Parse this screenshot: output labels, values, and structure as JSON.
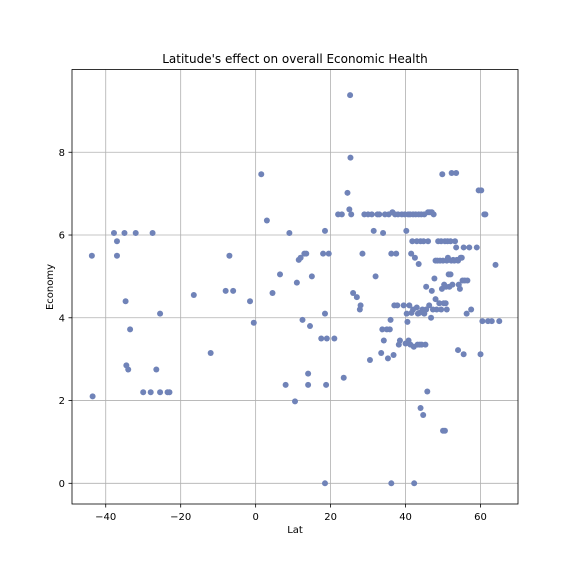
{
  "chart_data": {
    "type": "scatter",
    "title": "Latitude's effect on overall Economic Health",
    "xlabel": "Lat",
    "ylabel": "Economy",
    "xlim": [
      -49,
      70
    ],
    "ylim": [
      -0.5,
      10
    ],
    "xticks": [
      -40,
      -20,
      0,
      20,
      40,
      60
    ],
    "yticks": [
      0,
      2,
      4,
      6,
      8
    ],
    "grid": true,
    "point_color": "#7083b8",
    "points": [
      [
        -43.7,
        5.5
      ],
      [
        -43.5,
        2.1
      ],
      [
        -37.8,
        6.05
      ],
      [
        -37,
        5.85
      ],
      [
        -37,
        5.5
      ],
      [
        -35,
        6.05
      ],
      [
        -34.7,
        4.4
      ],
      [
        -34.5,
        2.85
      ],
      [
        -34,
        2.75
      ],
      [
        -33.5,
        3.72
      ],
      [
        -32,
        6.05
      ],
      [
        -30,
        2.2
      ],
      [
        -28,
        2.2
      ],
      [
        -27.5,
        6.05
      ],
      [
        -26.5,
        2.75
      ],
      [
        -25.5,
        4.1
      ],
      [
        -25.5,
        2.2
      ],
      [
        -23.5,
        2.2
      ],
      [
        -23,
        2.2
      ],
      [
        -16.5,
        4.55
      ],
      [
        -12,
        3.15
      ],
      [
        -8,
        4.65
      ],
      [
        -7,
        5.5
      ],
      [
        -6,
        4.65
      ],
      [
        -1.5,
        4.4
      ],
      [
        -0.5,
        3.88
      ],
      [
        1.5,
        7.47
      ],
      [
        3,
        6.35
      ],
      [
        4.5,
        4.6
      ],
      [
        6.5,
        5.05
      ],
      [
        8,
        2.38
      ],
      [
        9,
        6.05
      ],
      [
        10.5,
        1.98
      ],
      [
        11,
        4.85
      ],
      [
        11.5,
        5.4
      ],
      [
        12,
        5.45
      ],
      [
        12.5,
        3.95
      ],
      [
        13,
        5.55
      ],
      [
        13.5,
        5.55
      ],
      [
        14,
        2.65
      ],
      [
        14,
        2.38
      ],
      [
        14.5,
        3.8
      ],
      [
        15,
        5.0
      ],
      [
        17.5,
        3.5
      ],
      [
        18,
        5.55
      ],
      [
        18.5,
        6.1
      ],
      [
        18.5,
        4.1
      ],
      [
        18.8,
        2.38
      ],
      [
        19.5,
        5.55
      ],
      [
        19,
        3.5
      ],
      [
        21,
        3.5
      ],
      [
        18.5,
        0.0
      ],
      [
        22,
        6.5
      ],
      [
        23,
        6.5
      ],
      [
        23.5,
        2.55
      ],
      [
        24.5,
        7.02
      ],
      [
        25,
        6.62
      ],
      [
        25.2,
        9.38
      ],
      [
        25.3,
        7.87
      ],
      [
        25.5,
        6.5
      ],
      [
        26,
        4.6
      ],
      [
        27,
        4.5
      ],
      [
        27.8,
        4.2
      ],
      [
        28,
        4.3
      ],
      [
        28.5,
        5.55
      ],
      [
        29,
        6.5
      ],
      [
        30,
        6.5
      ],
      [
        30.5,
        2.98
      ],
      [
        31,
        6.5
      ],
      [
        31.5,
        6.1
      ],
      [
        32,
        5.0
      ],
      [
        32.5,
        6.5
      ],
      [
        33,
        6.5
      ],
      [
        33.5,
        3.15
      ],
      [
        33.8,
        3.72
      ],
      [
        34,
        6.05
      ],
      [
        34.2,
        3.45
      ],
      [
        34.5,
        6.5
      ],
      [
        35,
        3.72
      ],
      [
        35.3,
        3.02
      ],
      [
        35.5,
        6.5
      ],
      [
        35.8,
        3.72
      ],
      [
        36,
        3.95
      ],
      [
        36.2,
        5.55
      ],
      [
        36.2,
        0.0
      ],
      [
        36.5,
        6.55
      ],
      [
        36.8,
        3.1
      ],
      [
        37,
        4.3
      ],
      [
        37.2,
        6.5
      ],
      [
        37.5,
        5.55
      ],
      [
        37.8,
        4.3
      ],
      [
        38,
        6.5
      ],
      [
        38.2,
        3.35
      ],
      [
        38.5,
        3.45
      ],
      [
        39,
        6.5
      ],
      [
        39.5,
        4.3
      ],
      [
        39.8,
        6.5
      ],
      [
        40,
        3.38
      ],
      [
        40.2,
        6.1
      ],
      [
        40.3,
        4.1
      ],
      [
        40.5,
        3.9
      ],
      [
        40.7,
        6.5
      ],
      [
        40.8,
        3.45
      ],
      [
        41,
        4.3
      ],
      [
        41.2,
        6.5
      ],
      [
        41.3,
        3.35
      ],
      [
        41.5,
        5.55
      ],
      [
        41.6,
        4.12
      ],
      [
        41.8,
        5.85
      ],
      [
        42,
        6.5
      ],
      [
        42,
        4.2
      ],
      [
        42.2,
        3.3
      ],
      [
        42.3,
        0.0
      ],
      [
        42.5,
        5.45
      ],
      [
        42.7,
        6.5
      ],
      [
        43,
        4.25
      ],
      [
        43,
        5.85
      ],
      [
        43.2,
        3.35
      ],
      [
        43.3,
        4.1
      ],
      [
        43.5,
        6.5
      ],
      [
        43.5,
        5.3
      ],
      [
        43.7,
        4.12
      ],
      [
        43.8,
        3.35
      ],
      [
        44,
        5.85
      ],
      [
        44,
        1.82
      ],
      [
        44.2,
        6.5
      ],
      [
        44.3,
        3.35
      ],
      [
        44.5,
        4.2
      ],
      [
        44.7,
        1.65
      ],
      [
        44.8,
        5.85
      ],
      [
        45,
        6.5
      ],
      [
        45,
        4.1
      ],
      [
        45.3,
        3.35
      ],
      [
        45.5,
        4.75
      ],
      [
        45.5,
        4.2
      ],
      [
        45.8,
        2.22
      ],
      [
        46,
        6.55
      ],
      [
        46,
        5.85
      ],
      [
        46.3,
        4.3
      ],
      [
        46.5,
        6.55
      ],
      [
        46.8,
        4.0
      ],
      [
        47,
        6.55
      ],
      [
        47,
        4.65
      ],
      [
        47.3,
        4.2
      ],
      [
        47.5,
        6.5
      ],
      [
        47.7,
        4.95
      ],
      [
        48,
        5.38
      ],
      [
        48,
        4.45
      ],
      [
        48.3,
        4.2
      ],
      [
        48.5,
        5.38
      ],
      [
        48.7,
        5.85
      ],
      [
        49,
        4.35
      ],
      [
        49.2,
        5.38
      ],
      [
        49.5,
        4.2
      ],
      [
        49.5,
        5.85
      ],
      [
        49.7,
        4.7
      ],
      [
        49.8,
        7.47
      ],
      [
        50,
        1.27
      ],
      [
        50,
        5.38
      ],
      [
        50.2,
        4.35
      ],
      [
        50.3,
        4.8
      ],
      [
        50.5,
        1.27
      ],
      [
        50.5,
        5.85
      ],
      [
        50.7,
        4.35
      ],
      [
        50.8,
        4.75
      ],
      [
        51,
        5.38
      ],
      [
        51,
        4.2
      ],
      [
        51.2,
        5.85
      ],
      [
        51.3,
        5.45
      ],
      [
        51.5,
        5.05
      ],
      [
        51.7,
        4.75
      ],
      [
        52,
        5.85
      ],
      [
        52,
        5.05
      ],
      [
        52.2,
        5.38
      ],
      [
        52.3,
        7.5
      ],
      [
        52.5,
        4.8
      ],
      [
        52.7,
        5.4
      ],
      [
        53,
        5.38
      ],
      [
        53.2,
        5.85
      ],
      [
        53.5,
        7.5
      ],
      [
        53.5,
        5.7
      ],
      [
        53.7,
        5.4
      ],
      [
        54,
        5.38
      ],
      [
        54,
        3.22
      ],
      [
        54.2,
        4.8
      ],
      [
        54.5,
        4.7
      ],
      [
        54.7,
        5.45
      ],
      [
        55,
        5.45
      ],
      [
        55.2,
        4.9
      ],
      [
        55.5,
        5.7
      ],
      [
        55.5,
        3.12
      ],
      [
        55.8,
        4.9
      ],
      [
        56.3,
        4.1
      ],
      [
        56.5,
        4.9
      ],
      [
        57,
        5.7
      ],
      [
        57.5,
        4.2
      ],
      [
        59,
        5.7
      ],
      [
        59.5,
        7.08
      ],
      [
        60,
        3.12
      ],
      [
        60.2,
        7.08
      ],
      [
        60.5,
        3.92
      ],
      [
        61,
        6.5
      ],
      [
        61.3,
        6.5
      ],
      [
        62,
        3.92
      ],
      [
        64,
        5.28
      ],
      [
        65,
        3.92
      ],
      [
        63,
        3.92
      ]
    ]
  }
}
